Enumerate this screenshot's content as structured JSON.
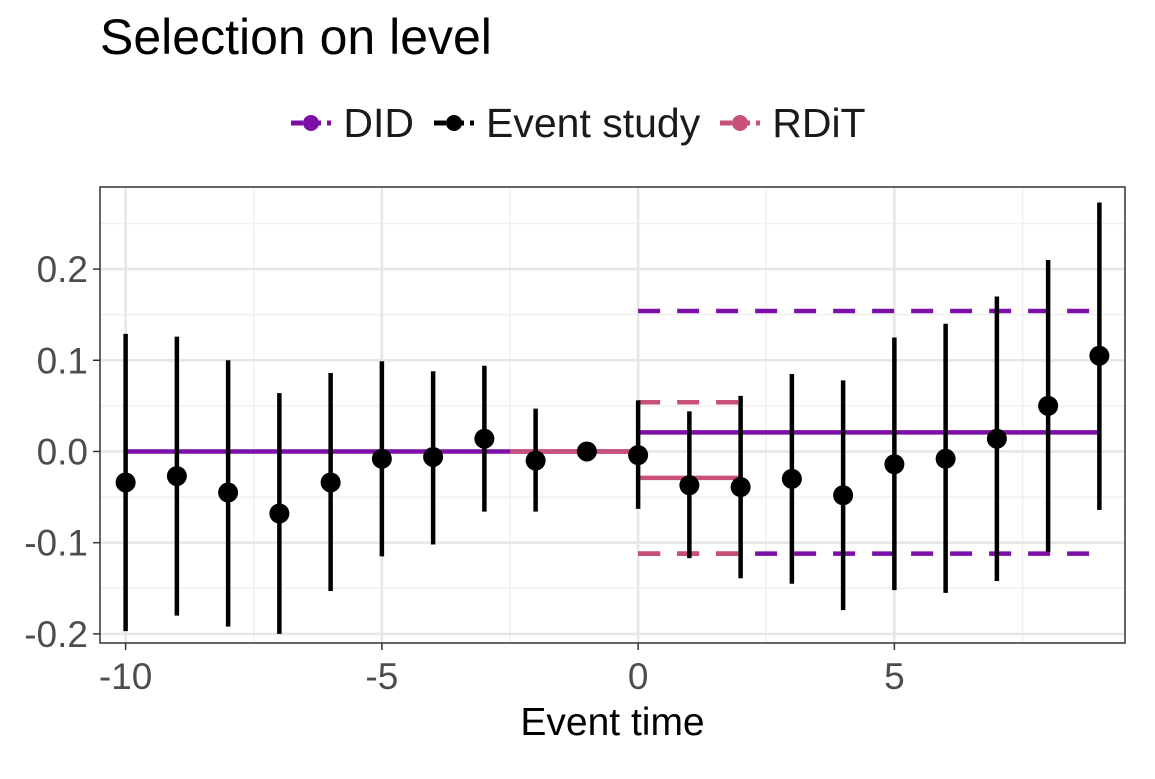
{
  "chart_data": {
    "type": "scatter",
    "title": "Selection on level",
    "xlabel": "Event time",
    "ylabel": "",
    "xlim": [
      -10.5,
      9.5
    ],
    "ylim": [
      -0.21,
      0.29
    ],
    "x_ticks": [
      -10,
      -5,
      0,
      5
    ],
    "x_tick_labels": [
      "-10",
      "-5",
      "0",
      "5"
    ],
    "y_ticks": [
      -0.2,
      -0.1,
      0.0,
      0.1,
      0.2
    ],
    "y_tick_labels": [
      "-0.2",
      "-0.1",
      "0.0",
      "0.1",
      "0.2"
    ],
    "grid": true,
    "legend_position": "top",
    "series": [
      {
        "name": "DID",
        "color": "#7b0fa8",
        "segments": [
          {
            "x": [
              -10,
              0
            ],
            "y": 0.0,
            "style": "solid"
          },
          {
            "x": [
              0,
              9
            ],
            "y": 0.021,
            "style": "solid"
          },
          {
            "x": [
              0,
              9
            ],
            "y": 0.154,
            "style": "dashed"
          },
          {
            "x": [
              0,
              9
            ],
            "y": -0.112,
            "style": "dashed"
          }
        ]
      },
      {
        "name": "Event study",
        "color": "#000000",
        "points": [
          {
            "x": -10,
            "y": -0.034,
            "lo": -0.197,
            "hi": 0.129
          },
          {
            "x": -9,
            "y": -0.027,
            "lo": -0.18,
            "hi": 0.126
          },
          {
            "x": -8,
            "y": -0.045,
            "lo": -0.192,
            "hi": 0.1
          },
          {
            "x": -7,
            "y": -0.068,
            "lo": -0.2,
            "hi": 0.064
          },
          {
            "x": -6,
            "y": -0.034,
            "lo": -0.153,
            "hi": 0.086
          },
          {
            "x": -5,
            "y": -0.008,
            "lo": -0.115,
            "hi": 0.099
          },
          {
            "x": -4,
            "y": -0.006,
            "lo": -0.102,
            "hi": 0.088
          },
          {
            "x": -3,
            "y": 0.014,
            "lo": -0.066,
            "hi": 0.094
          },
          {
            "x": -2,
            "y": -0.01,
            "lo": -0.066,
            "hi": 0.047
          },
          {
            "x": -1,
            "y": 0.0,
            "lo": 0.0,
            "hi": 0.0
          },
          {
            "x": 0,
            "y": -0.004,
            "lo": -0.063,
            "hi": 0.056
          },
          {
            "x": 1,
            "y": -0.037,
            "lo": -0.117,
            "hi": 0.044
          },
          {
            "x": 2,
            "y": -0.039,
            "lo": -0.139,
            "hi": 0.061
          },
          {
            "x": 3,
            "y": -0.03,
            "lo": -0.145,
            "hi": 0.085
          },
          {
            "x": 4,
            "y": -0.048,
            "lo": -0.174,
            "hi": 0.078
          },
          {
            "x": 5,
            "y": -0.014,
            "lo": -0.152,
            "hi": 0.125
          },
          {
            "x": 6,
            "y": -0.008,
            "lo": -0.155,
            "hi": 0.14
          },
          {
            "x": 7,
            "y": 0.014,
            "lo": -0.142,
            "hi": 0.17
          },
          {
            "x": 8,
            "y": 0.05,
            "lo": -0.11,
            "hi": 0.21
          },
          {
            "x": 9,
            "y": 0.105,
            "lo": -0.064,
            "hi": 0.273
          }
        ]
      },
      {
        "name": "RDiT",
        "color": "#c8507a",
        "segments": [
          {
            "x": [
              -2.5,
              0
            ],
            "y": 0.0,
            "style": "solid"
          },
          {
            "x": [
              0,
              2
            ],
            "y": -0.029,
            "style": "solid"
          },
          {
            "x": [
              0,
              2
            ],
            "y": 0.054,
            "style": "dashed"
          },
          {
            "x": [
              0,
              2
            ],
            "y": -0.112,
            "style": "dashed"
          }
        ]
      }
    ]
  }
}
